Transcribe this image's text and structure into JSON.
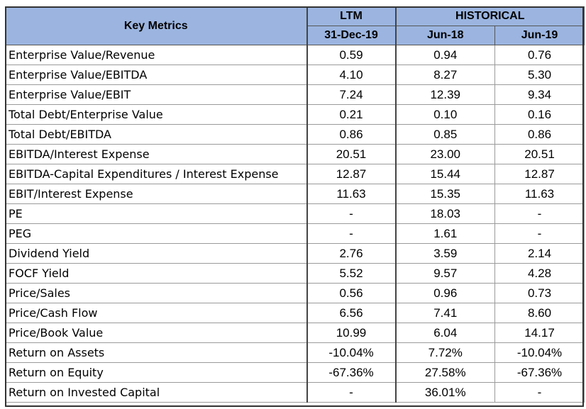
{
  "header": {
    "key_metrics": "Key Metrics",
    "ltm": "LTM",
    "historical": "HISTORICAL",
    "col_ltm_date": "31-Dec-19",
    "col_hist_1": "Jun-18",
    "col_hist_2": "Jun-19"
  },
  "rows": [
    {
      "metric": "Enterprise Value/Revenue",
      "ltm": "0.59",
      "h1": "0.94",
      "h2": "0.76"
    },
    {
      "metric": "Enterprise Value/EBITDA",
      "ltm": "4.10",
      "h1": "8.27",
      "h2": "5.30"
    },
    {
      "metric": "Enterprise Value/EBIT",
      "ltm": "7.24",
      "h1": "12.39",
      "h2": "9.34"
    },
    {
      "metric": "Total Debt/Enterprise Value",
      "ltm": "0.21",
      "h1": "0.10",
      "h2": "0.16"
    },
    {
      "metric": "Total Debt/EBITDA",
      "ltm": "0.86",
      "h1": "0.85",
      "h2": "0.86"
    },
    {
      "metric": "EBITDA/Interest Expense",
      "ltm": "20.51",
      "h1": "23.00",
      "h2": "20.51"
    },
    {
      "metric": "EBITDA-Capital Expenditures / Interest Expense",
      "ltm": "12.87",
      "h1": "15.44",
      "h2": "12.87"
    },
    {
      "metric": "EBIT/Interest Expense",
      "ltm": "11.63",
      "h1": "15.35",
      "h2": "11.63"
    },
    {
      "metric": "PE",
      "ltm": "-",
      "h1": "18.03",
      "h2": "-"
    },
    {
      "metric": "PEG",
      "ltm": "-",
      "h1": "1.61",
      "h2": "-"
    },
    {
      "metric": "Dividend Yield",
      "ltm": "2.76",
      "h1": "3.59",
      "h2": "2.14"
    },
    {
      "metric": "FOCF Yield",
      "ltm": "5.52",
      "h1": "9.57",
      "h2": "4.28"
    },
    {
      "metric": "Price/Sales",
      "ltm": "0.56",
      "h1": "0.96",
      "h2": "0.73"
    },
    {
      "metric": "Price/Cash Flow",
      "ltm": "6.56",
      "h1": "7.41",
      "h2": "8.60"
    },
    {
      "metric": "Price/Book Value",
      "ltm": "10.99",
      "h1": "6.04",
      "h2": "14.17"
    },
    {
      "metric": "Return on Assets",
      "ltm": "-10.04%",
      "h1": "7.72%",
      "h2": "-10.04%"
    },
    {
      "metric": "Return on Equity",
      "ltm": "-67.36%",
      "h1": "27.58%",
      "h2": "-67.36%"
    },
    {
      "metric": "Return on Invested Capital",
      "ltm": "-",
      "h1": "36.01%",
      "h2": "-"
    }
  ],
  "colors": {
    "header_fill": "#9bb5e0",
    "grid_line": "#9a9a9a",
    "thick_border": "#444444"
  }
}
